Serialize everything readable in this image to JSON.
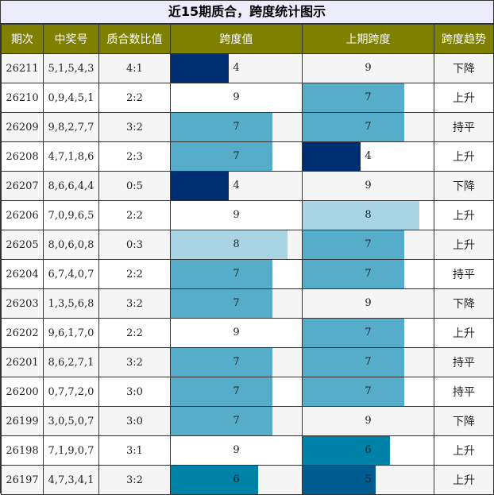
{
  "title": "近15期质合，跨度统计图示",
  "headers": [
    "期次",
    "中奖号",
    "质合数比值",
    "跨度值",
    "上期跨度",
    "跨度趋势"
  ],
  "bar_colors": {
    "4": "#002e73",
    "5": "#005b91",
    "6": "#0081a8",
    "7": "#56adc9",
    "8": "#a8d4e3",
    "9": "#ffffff"
  },
  "bar_max": 9,
  "rows": [
    {
      "period": "26211",
      "numbers": "5,1,5,4,3",
      "ratio": "4:1",
      "span": 4,
      "prev_span": 9,
      "trend": "下降"
    },
    {
      "period": "26210",
      "numbers": "0,9,4,5,1",
      "ratio": "2:2",
      "span": 9,
      "prev_span": 7,
      "trend": "上升"
    },
    {
      "period": "26209",
      "numbers": "9,8,2,7,7",
      "ratio": "3:2",
      "span": 7,
      "prev_span": 7,
      "trend": "持平"
    },
    {
      "period": "26208",
      "numbers": "4,7,1,8,6",
      "ratio": "2:3",
      "span": 7,
      "prev_span": 4,
      "trend": "上升"
    },
    {
      "period": "26207",
      "numbers": "8,6,6,4,4",
      "ratio": "0:5",
      "span": 4,
      "prev_span": 9,
      "trend": "下降"
    },
    {
      "period": "26206",
      "numbers": "7,0,9,6,5",
      "ratio": "2:2",
      "span": 9,
      "prev_span": 8,
      "trend": "上升"
    },
    {
      "period": "26205",
      "numbers": "8,0,6,0,8",
      "ratio": "0:3",
      "span": 8,
      "prev_span": 7,
      "trend": "上升"
    },
    {
      "period": "26204",
      "numbers": "6,7,4,0,7",
      "ratio": "2:2",
      "span": 7,
      "prev_span": 7,
      "trend": "持平"
    },
    {
      "period": "26203",
      "numbers": "1,3,5,6,8",
      "ratio": "3:2",
      "span": 7,
      "prev_span": 9,
      "trend": "下降"
    },
    {
      "period": "26202",
      "numbers": "9,6,1,7,0",
      "ratio": "2:2",
      "span": 9,
      "prev_span": 7,
      "trend": "上升"
    },
    {
      "period": "26201",
      "numbers": "8,6,2,7,1",
      "ratio": "3:2",
      "span": 7,
      "prev_span": 7,
      "trend": "持平"
    },
    {
      "period": "26200",
      "numbers": "0,7,7,2,0",
      "ratio": "3:0",
      "span": 7,
      "prev_span": 7,
      "trend": "持平"
    },
    {
      "period": "26199",
      "numbers": "3,0,5,0,7",
      "ratio": "3:0",
      "span": 7,
      "prev_span": 9,
      "trend": "下降"
    },
    {
      "period": "26198",
      "numbers": "7,1,9,0,7",
      "ratio": "3:1",
      "span": 9,
      "prev_span": 6,
      "trend": "上升"
    },
    {
      "period": "26197",
      "numbers": "4,7,3,4,1",
      "ratio": "3:2",
      "span": 6,
      "prev_span": 5,
      "trend": "上升"
    }
  ]
}
